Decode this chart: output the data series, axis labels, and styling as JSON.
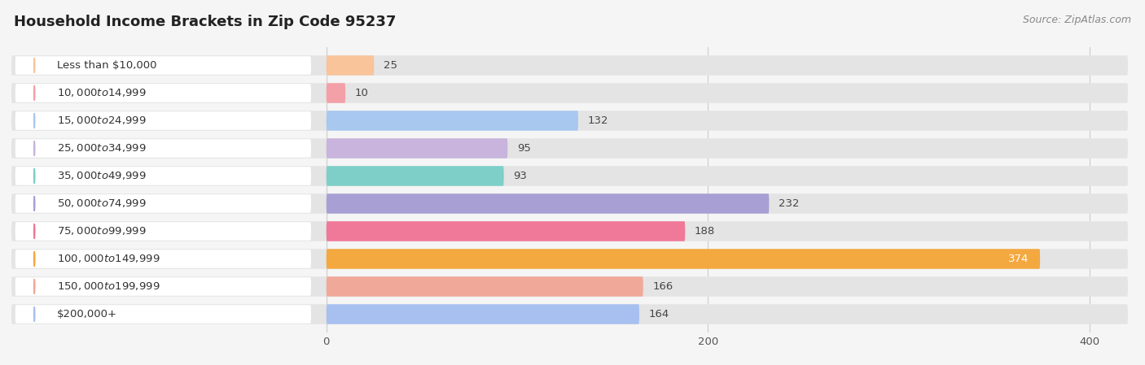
{
  "title": "Household Income Brackets in Zip Code 95237",
  "source": "Source: ZipAtlas.com",
  "categories": [
    "Less than $10,000",
    "$10,000 to $14,999",
    "$15,000 to $24,999",
    "$25,000 to $34,999",
    "$35,000 to $49,999",
    "$50,000 to $74,999",
    "$75,000 to $99,999",
    "$100,000 to $149,999",
    "$150,000 to $199,999",
    "$200,000+"
  ],
  "values": [
    25,
    10,
    132,
    95,
    93,
    232,
    188,
    374,
    166,
    164
  ],
  "bar_colors": [
    "#F9C49A",
    "#F4A0A8",
    "#A8C8F0",
    "#C8B4DC",
    "#7DCFC8",
    "#A8A0D4",
    "#F07898",
    "#F4A840",
    "#F0A898",
    "#A8C0F0"
  ],
  "xlim_max": 420,
  "background_color": "#f5f5f5",
  "bar_bg_color": "#e4e4e4",
  "title_fontsize": 13,
  "label_fontsize": 9.5,
  "value_fontsize": 9.5,
  "source_fontsize": 9,
  "pill_color": "#ffffff",
  "pill_shadow": "#d8d8d8"
}
